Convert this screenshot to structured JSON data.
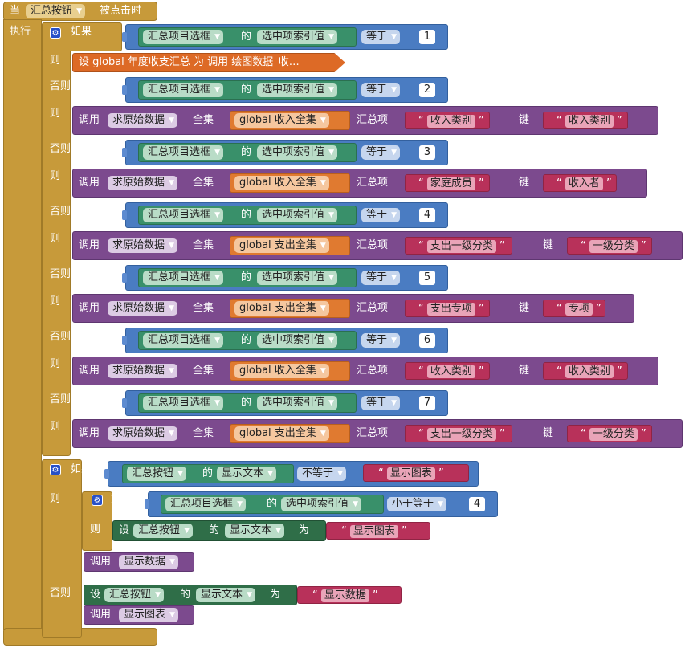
{
  "event": {
    "when": "当",
    "component": "汇总按钮",
    "event": "被点击时",
    "do": "执行"
  },
  "kw": {
    "if": "如果",
    "then": "则",
    "else_if": "否则，如果",
    "else": "否则",
    "of": "的",
    "equals": "等于",
    "not_equals": "不等于",
    "lte": "小于等于",
    "call": "调用",
    "set": "设",
    "to": "为",
    "collection": "全集",
    "sum_item": "汇总项",
    "key": "键"
  },
  "selector": {
    "component": "汇总项目选框",
    "property": "选中项索引值"
  },
  "first_then": "设 global 年度收支汇总 为 调用 绘图数据_收…",
  "proc_raw": "求原始数据",
  "branches": [
    {
      "num": "1"
    },
    {
      "num": "2",
      "collection": "global 收入全集",
      "item": "收入类别",
      "key": "收入类别"
    },
    {
      "num": "3",
      "collection": "global 收入全集",
      "item": "家庭成员",
      "key": "收入者"
    },
    {
      "num": "4",
      "collection": "global 支出全集",
      "item": "支出一级分类",
      "key": "一级分类"
    },
    {
      "num": "5",
      "collection": "global 支出全集",
      "item": "支出专项",
      "key": "专项"
    },
    {
      "num": "6",
      "collection": "global 收入全集",
      "item": "收入类别",
      "key": "收入类别"
    },
    {
      "num": "7",
      "collection": "global 支出全集",
      "item": "支出一级分类",
      "key": "一级分类"
    }
  ],
  "second_if": {
    "button": "汇总按钮",
    "prop": "显示文本",
    "cmp_value": "显示图表",
    "inner_num": "4",
    "set_value_then": "显示图表",
    "call_then": "显示数据",
    "set_value_else": "显示数据",
    "call_else": "显示图表"
  },
  "colors": {
    "event": "#c79a3a",
    "control": "#4a7cc2",
    "component": "#39906a",
    "procedure": "#7c4a8e",
    "variable": "#e07a30",
    "text": "#b8315a"
  },
  "icons": {
    "gear": "gear-icon",
    "dropdown": "chevron-down-icon"
  }
}
